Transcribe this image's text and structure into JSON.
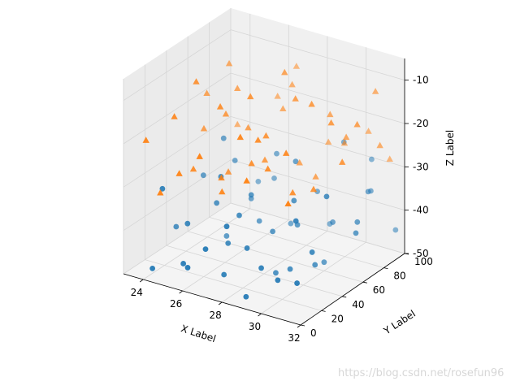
{
  "chart_data": {
    "type": "scatter",
    "projection": "3d",
    "xlabel": "X Label",
    "ylabel": "Y Label",
    "zlabel": "Z Label",
    "xlim": [
      23,
      32
    ],
    "ylim": [
      0,
      100
    ],
    "zlim": [
      -50,
      -5
    ],
    "xticks": [
      "24",
      "26",
      "28",
      "30",
      "32"
    ],
    "yticks": [
      "0",
      "20",
      "40",
      "60",
      "80",
      "100"
    ],
    "zticks": [
      "-10",
      "-20",
      "-30",
      "-40",
      "-50"
    ],
    "grid": true,
    "series": [
      {
        "marker": "circle",
        "color": "#1f77b4",
        "points": [
          [
            24.2,
            5,
            -48
          ],
          [
            25.5,
            10,
            -46
          ],
          [
            26.1,
            3,
            -45
          ],
          [
            27.3,
            15,
            -47
          ],
          [
            28.8,
            8,
            -49
          ],
          [
            30.2,
            12,
            -44
          ],
          [
            31.5,
            6,
            -42
          ],
          [
            24.9,
            25,
            -40
          ],
          [
            26.7,
            30,
            -43
          ],
          [
            28.1,
            22,
            -41
          ],
          [
            29.6,
            35,
            -46
          ],
          [
            31.1,
            28,
            -39
          ],
          [
            25.3,
            45,
            -38
          ],
          [
            27.9,
            50,
            -42
          ],
          [
            30.5,
            42,
            -45
          ],
          [
            23.8,
            60,
            -36
          ],
          [
            26.4,
            65,
            -44
          ],
          [
            28.9,
            55,
            -40
          ],
          [
            31.6,
            62,
            -37
          ],
          [
            24.6,
            75,
            -34
          ],
          [
            27.2,
            80,
            -46
          ],
          [
            29.8,
            72,
            -41
          ],
          [
            25.8,
            90,
            -39
          ],
          [
            28.4,
            95,
            -47
          ],
          [
            30.9,
            88,
            -35
          ],
          [
            24.0,
            18,
            -32
          ],
          [
            25.9,
            38,
            -30
          ],
          [
            27.6,
            12,
            -35
          ],
          [
            29.1,
            48,
            -33
          ],
          [
            30.7,
            20,
            -31
          ],
          [
            31.9,
            55,
            -38
          ],
          [
            24.4,
            68,
            -28
          ],
          [
            26.2,
            85,
            -32
          ],
          [
            28.0,
            70,
            -29
          ],
          [
            29.4,
            90,
            -26
          ],
          [
            31.3,
            78,
            -33
          ],
          [
            23.5,
            40,
            -45
          ],
          [
            25.1,
            58,
            -48
          ],
          [
            26.9,
            5,
            -40
          ],
          [
            28.6,
            40,
            -49
          ],
          [
            30.0,
            60,
            -48
          ],
          [
            31.8,
            95,
            -44
          ],
          [
            24.7,
            95,
            -42
          ],
          [
            27.0,
            35,
            -37
          ],
          [
            29.2,
            15,
            -43
          ],
          [
            30.4,
            98,
            -30
          ],
          [
            25.6,
            72,
            -41
          ],
          [
            26.8,
            50,
            -35
          ],
          [
            28.3,
            85,
            -38
          ],
          [
            31.2,
            40,
            -28
          ]
        ]
      },
      {
        "marker": "triangle",
        "color": "#ff7f0e",
        "points": [
          [
            23.6,
            10,
            -20
          ],
          [
            24.5,
            20,
            -15
          ],
          [
            25.4,
            8,
            -25
          ],
          [
            26.3,
            30,
            -12
          ],
          [
            27.2,
            15,
            -28
          ],
          [
            28.1,
            40,
            -18
          ],
          [
            29.0,
            25,
            -22
          ],
          [
            29.9,
            50,
            -10
          ],
          [
            30.8,
            35,
            -26
          ],
          [
            31.7,
            60,
            -14
          ],
          [
            24.1,
            55,
            -24
          ],
          [
            25.0,
            70,
            -16
          ],
          [
            25.9,
            45,
            -30
          ],
          [
            26.8,
            80,
            -20
          ],
          [
            27.7,
            65,
            -8
          ],
          [
            28.6,
            90,
            -27
          ],
          [
            29.5,
            75,
            -17
          ],
          [
            30.4,
            95,
            -23
          ],
          [
            31.3,
            85,
            -11
          ],
          [
            23.9,
            90,
            -29
          ],
          [
            24.8,
            35,
            -9
          ],
          [
            25.7,
            95,
            -21
          ],
          [
            26.6,
            5,
            -19
          ],
          [
            27.5,
            50,
            -26
          ],
          [
            28.4,
            10,
            -13
          ],
          [
            29.3,
            65,
            -30
          ],
          [
            30.2,
            20,
            -16
          ],
          [
            31.1,
            5,
            -24
          ],
          [
            32.0,
            40,
            -19
          ],
          [
            24.3,
            75,
            -12
          ],
          [
            25.2,
            25,
            -27
          ],
          [
            26.1,
            60,
            -22
          ],
          [
            27.0,
            85,
            -15
          ],
          [
            27.9,
            30,
            -23
          ],
          [
            28.8,
            55,
            -11
          ],
          [
            29.7,
            85,
            -25
          ],
          [
            30.6,
            70,
            -20
          ],
          [
            31.5,
            95,
            -28
          ],
          [
            24.6,
            5,
            -30
          ],
          [
            25.5,
            50,
            -18
          ],
          [
            26.4,
            100,
            -14
          ],
          [
            27.3,
            40,
            -10
          ],
          [
            28.2,
            70,
            -29
          ],
          [
            29.1,
            3,
            -21
          ],
          [
            30.0,
            30,
            -27
          ],
          [
            30.9,
            50,
            -13
          ],
          [
            31.8,
            80,
            -22
          ],
          [
            23.7,
            65,
            -18
          ],
          [
            26.9,
            20,
            -26
          ],
          [
            28.5,
            25,
            -16
          ]
        ]
      }
    ]
  },
  "watermark": "https://blog.csdn.net/rosefun96"
}
